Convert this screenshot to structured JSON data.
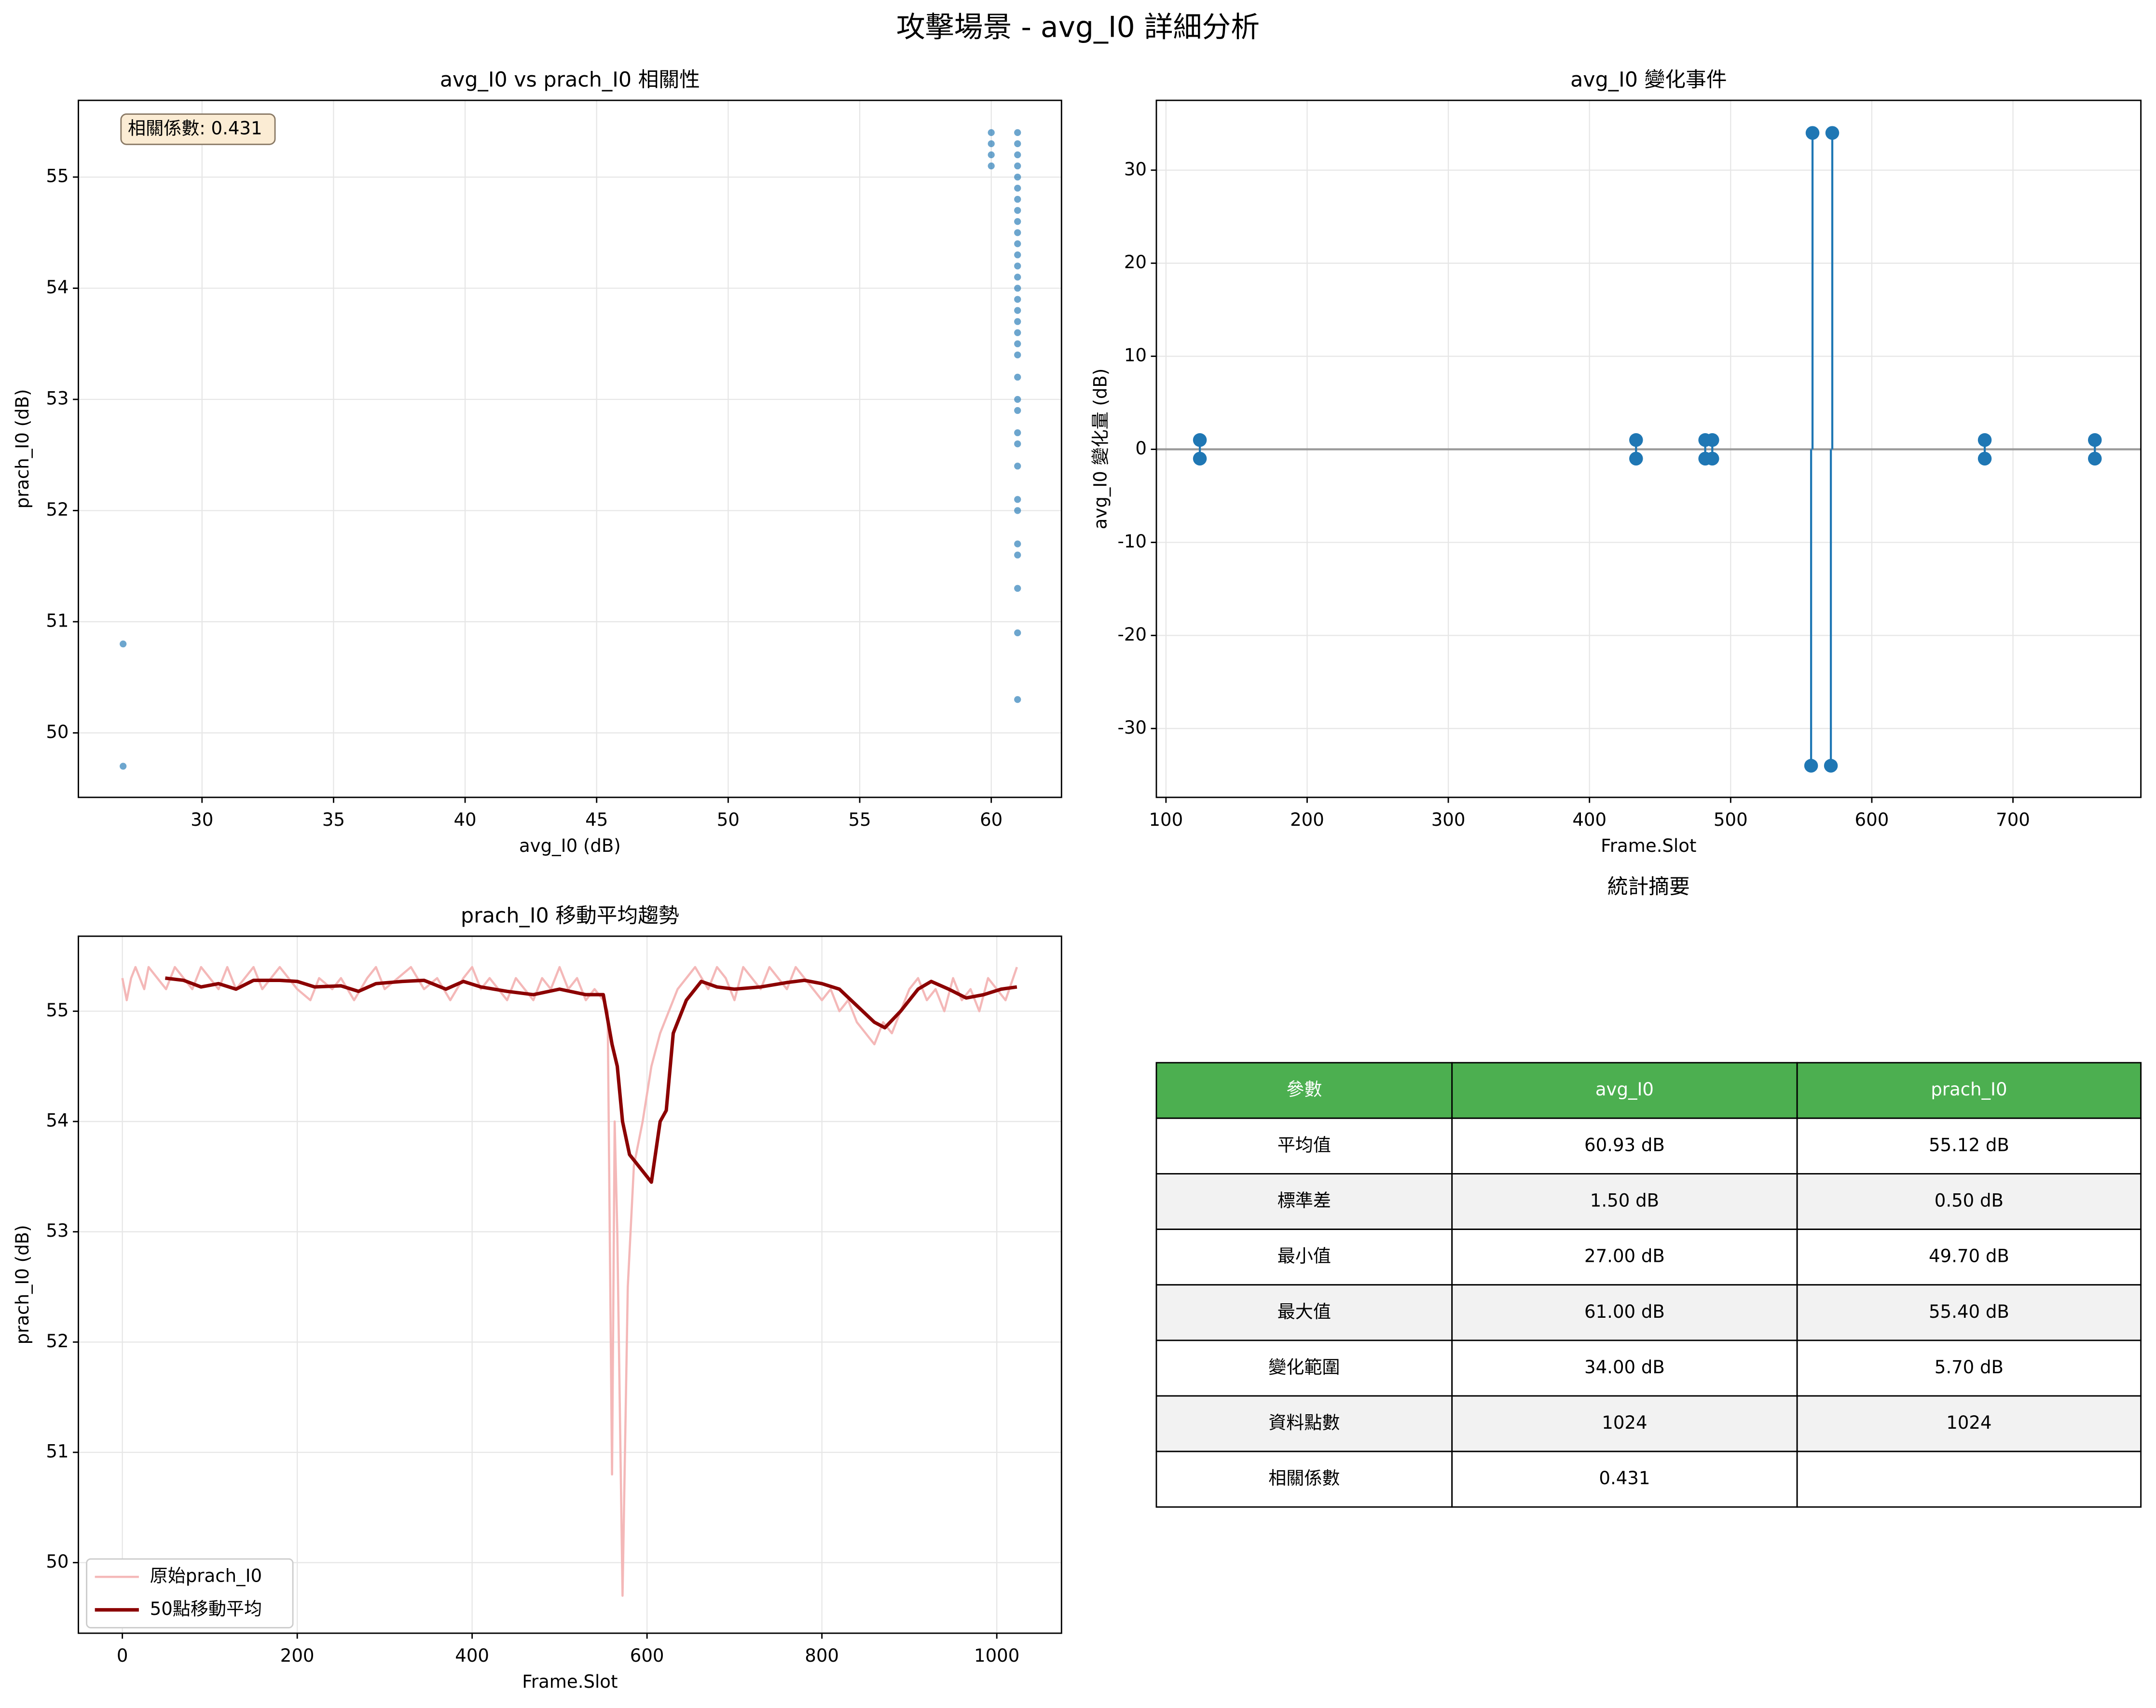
{
  "title": "攻擊場景 - avg_I0 詳細分析",
  "chart_data": [
    {
      "type": "scatter",
      "title": "avg_I0 vs prach_I0 相關性",
      "xlabel": "avg_I0 (dB)",
      "ylabel": "prach_I0 (dB)",
      "annotation": "相關係數: 0.431",
      "color": "#1f77b4",
      "grid": true,
      "x": [
        27,
        27,
        60,
        60,
        60,
        60,
        61,
        61,
        61,
        61,
        61,
        61,
        61,
        61,
        61,
        61,
        61,
        61,
        61,
        61,
        61,
        61,
        61,
        61,
        61,
        61,
        61,
        61,
        61,
        61,
        61,
        61,
        61,
        61,
        61,
        61,
        61,
        61,
        61,
        61
      ],
      "y": [
        50.8,
        49.7,
        55.4,
        55.3,
        55.2,
        55.1,
        55.4,
        55.3,
        55.2,
        55.1,
        55.0,
        54.9,
        54.8,
        54.7,
        54.6,
        54.5,
        54.4,
        54.3,
        54.2,
        54.1,
        54.0,
        53.9,
        53.8,
        53.7,
        53.6,
        53.5,
        53.4,
        53.2,
        53.0,
        52.9,
        52.7,
        52.6,
        52.4,
        52.1,
        52.0,
        51.7,
        51.6,
        51.3,
        50.9,
        50.3
      ],
      "xlim": [
        25.3,
        62.67
      ],
      "xticks": [
        30,
        35,
        40,
        45,
        50,
        55,
        60
      ],
      "ylim": [
        49.42,
        55.69
      ],
      "yticks": [
        50,
        51,
        52,
        53,
        54,
        55
      ]
    },
    {
      "type": "stem",
      "title": "avg_I0 變化事件",
      "xlabel": "Frame.Slot",
      "ylabel": "avg_I0 變化量 (dB)",
      "color": "#1f77b4",
      "baseline_color": "#999999",
      "grid": true,
      "x": [
        124,
        124,
        433,
        433,
        482,
        482,
        487,
        487,
        557,
        558,
        571,
        572,
        680,
        680,
        758,
        758
      ],
      "values": [
        1,
        -1,
        1,
        -1,
        1,
        -1,
        1,
        -1,
        -34,
        34,
        -34,
        34,
        1,
        -1,
        1,
        -1
      ],
      "xlim": [
        93.2,
        790.6
      ],
      "xticks": [
        100,
        200,
        300,
        400,
        500,
        600,
        700
      ],
      "ylim": [
        -37.4,
        37.5
      ],
      "yticks": [
        -30,
        -20,
        -10,
        0,
        10,
        20,
        30
      ]
    },
    {
      "type": "line",
      "title": "prach_I0 移動平均趨勢",
      "xlabel": "Frame.Slot",
      "ylabel": "prach_I0 (dB)",
      "grid": true,
      "legend": "lower left",
      "xlim": [
        -50.3,
        1074
      ],
      "xticks": [
        0,
        200,
        400,
        600,
        800,
        1000
      ],
      "ylim": [
        49.36,
        55.68
      ],
      "yticks": [
        50,
        51,
        52,
        53,
        54,
        55
      ],
      "series": [
        {
          "name": "原始prach_I0",
          "color": "#f4b8b8",
          "x": [
            0,
            5,
            10,
            15,
            25,
            30,
            40,
            50,
            60,
            70,
            80,
            90,
            100,
            110,
            120,
            130,
            140,
            150,
            160,
            170,
            180,
            190,
            200,
            215,
            225,
            240,
            250,
            265,
            280,
            290,
            300,
            315,
            330,
            345,
            360,
            375,
            390,
            400,
            410,
            420,
            430,
            440,
            450,
            460,
            470,
            480,
            490,
            500,
            510,
            520,
            530,
            540,
            550,
            555,
            560,
            563,
            566,
            572,
            578,
            585,
            595,
            605,
            615,
            625,
            635,
            645,
            655,
            670,
            680,
            690,
            700,
            710,
            720,
            730,
            740,
            750,
            760,
            770,
            780,
            790,
            800,
            810,
            820,
            830,
            840,
            850,
            860,
            870,
            880,
            890,
            900,
            910,
            920,
            930,
            940,
            950,
            960,
            970,
            980,
            990,
            1000,
            1010,
            1023
          ],
          "values": [
            55.3,
            55.1,
            55.3,
            55.4,
            55.2,
            55.4,
            55.3,
            55.2,
            55.4,
            55.3,
            55.2,
            55.4,
            55.3,
            55.2,
            55.4,
            55.2,
            55.3,
            55.4,
            55.2,
            55.3,
            55.4,
            55.3,
            55.2,
            55.1,
            55.3,
            55.2,
            55.3,
            55.1,
            55.3,
            55.4,
            55.2,
            55.3,
            55.4,
            55.2,
            55.3,
            55.1,
            55.3,
            55.4,
            55.2,
            55.3,
            55.2,
            55.1,
            55.3,
            55.2,
            55.1,
            55.3,
            55.2,
            55.4,
            55.2,
            55.3,
            55.1,
            55.2,
            55.1,
            55.0,
            50.8,
            54.0,
            53.0,
            49.7,
            52.5,
            53.6,
            54.0,
            54.5,
            54.8,
            55.0,
            55.2,
            55.3,
            55.4,
            55.2,
            55.4,
            55.3,
            55.1,
            55.4,
            55.3,
            55.2,
            55.4,
            55.3,
            55.2,
            55.4,
            55.3,
            55.2,
            55.1,
            55.2,
            55.0,
            55.1,
            54.9,
            54.8,
            54.7,
            54.9,
            54.8,
            55.0,
            55.2,
            55.3,
            55.1,
            55.2,
            55.0,
            55.3,
            55.1,
            55.2,
            55.0,
            55.3,
            55.2,
            55.1,
            55.4
          ]
        },
        {
          "name": "50點移動平均",
          "color": "#8b0000",
          "x": [
            49,
            70,
            90,
            110,
            130,
            150,
            180,
            200,
            220,
            250,
            270,
            290,
            320,
            345,
            370,
            390,
            410,
            440,
            470,
            500,
            530,
            550,
            560,
            566,
            572,
            580,
            595,
            605,
            615,
            622,
            630,
            645,
            662,
            680,
            700,
            730,
            760,
            780,
            800,
            820,
            840,
            860,
            872,
            890,
            910,
            925,
            945,
            965,
            985,
            1005,
            1023
          ],
          "values": [
            55.3,
            55.28,
            55.22,
            55.25,
            55.2,
            55.28,
            55.28,
            55.27,
            55.22,
            55.23,
            55.18,
            55.25,
            55.27,
            55.28,
            55.2,
            55.27,
            55.22,
            55.18,
            55.15,
            55.2,
            55.15,
            55.15,
            54.7,
            54.5,
            54.0,
            53.7,
            53.55,
            53.45,
            54.0,
            54.1,
            54.8,
            55.1,
            55.27,
            55.22,
            55.2,
            55.22,
            55.26,
            55.28,
            55.25,
            55.2,
            55.05,
            54.9,
            54.85,
            55.0,
            55.2,
            55.27,
            55.2,
            55.12,
            55.15,
            55.2,
            55.22
          ]
        }
      ]
    }
  ],
  "table": {
    "title": "統計摘要",
    "header_color": "#4caf50",
    "columns": [
      "參數",
      "avg_I0",
      "prach_I0"
    ],
    "rows": [
      [
        "平均值",
        "60.93 dB",
        "55.12 dB"
      ],
      [
        "標準差",
        "1.50 dB",
        "0.50 dB"
      ],
      [
        "最小值",
        "27.00 dB",
        "49.70 dB"
      ],
      [
        "最大值",
        "61.00 dB",
        "55.40 dB"
      ],
      [
        "變化範圍",
        "34.00 dB",
        "5.70 dB"
      ],
      [
        "資料點數",
        "1024",
        "1024"
      ],
      [
        "相關係數",
        "0.431"
      ]
    ]
  }
}
